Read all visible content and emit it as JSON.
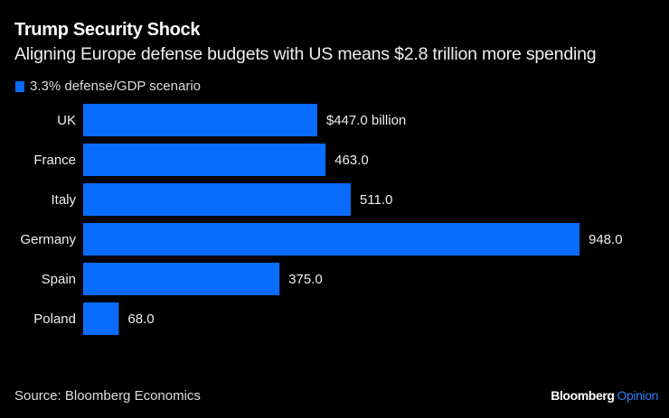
{
  "header": {
    "title": "Trump Security Shock",
    "subtitle": "Aligning Europe defense budgets with US means $2.8 trillion more spending"
  },
  "footer": {
    "source": "Source: Bloomberg Economics",
    "brand_main": "Bloomberg",
    "brand_accent": "Opinion"
  },
  "colors": {
    "bar": "#0a6cff",
    "accent": "#2f7bf6",
    "background": "#000000"
  },
  "chart_data": {
    "type": "bar",
    "orientation": "horizontal",
    "title": "Trump Security Shock",
    "subtitle": "Aligning Europe defense budgets with US means $2.8 trillion more spending",
    "xlabel": "",
    "ylabel": "",
    "grid": false,
    "legend_position": "top-left",
    "categories": [
      "UK",
      "France",
      "Italy",
      "Germany",
      "Spain",
      "Poland"
    ],
    "series": [
      {
        "name": "3.3% defense/GDP scenario",
        "values": [
          447.0,
          463.0,
          511.0,
          948.0,
          375.0,
          68.0
        ],
        "labels": [
          "$447.0 billion",
          "463.0",
          "511.0",
          "948.0",
          "375.0",
          "68.0"
        ]
      }
    ],
    "xlim": [
      0,
      948
    ]
  }
}
